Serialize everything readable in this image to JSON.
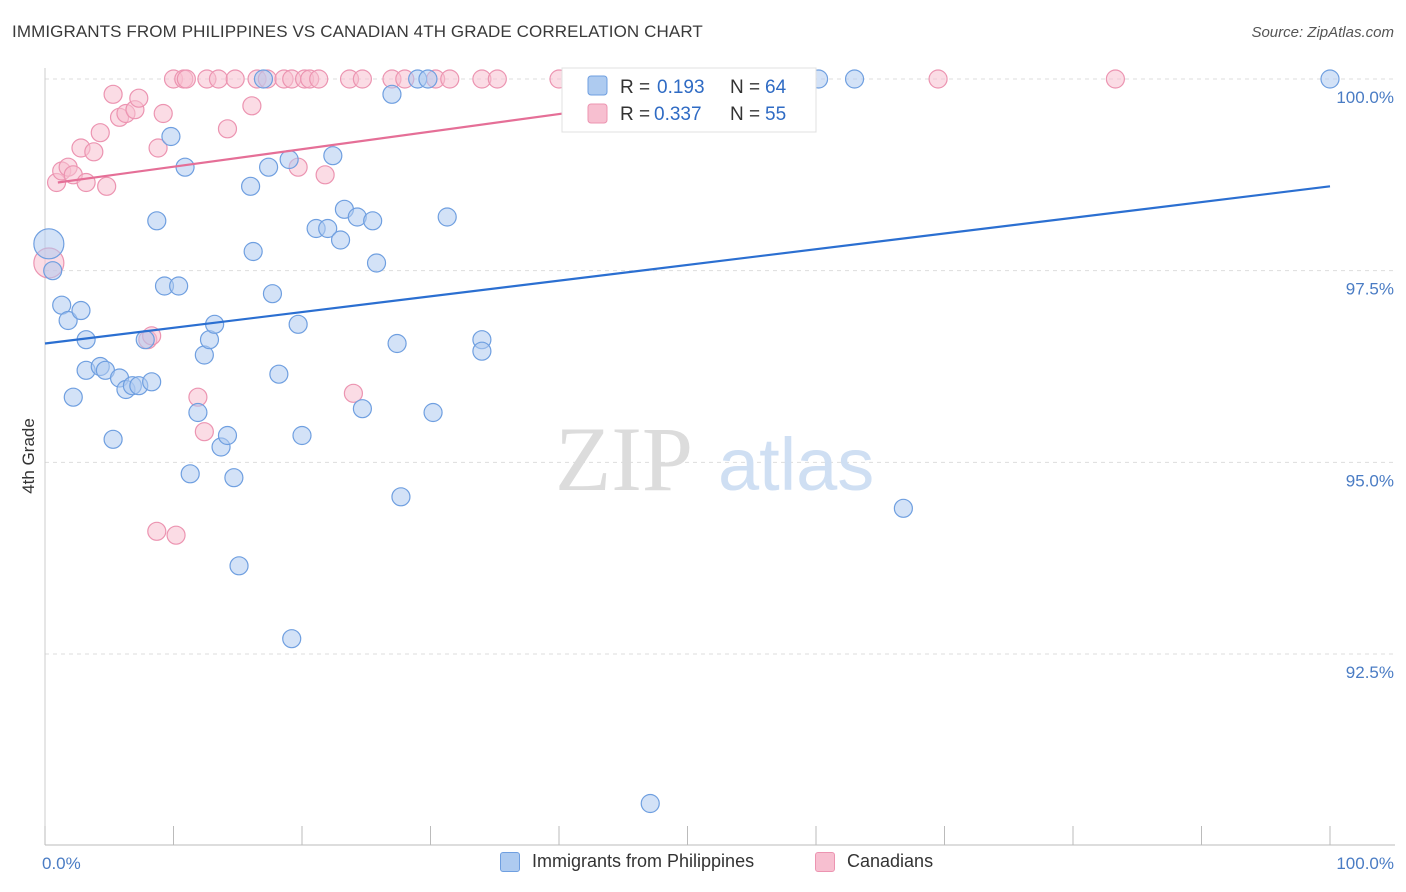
{
  "header": {
    "title": "IMMIGRANTS FROM PHILIPPINES VS CANADIAN 4TH GRADE CORRELATION CHART",
    "source": "Source: ZipAtlas.com"
  },
  "watermark": {
    "zip": "ZIP",
    "atlas": "atlas"
  },
  "colors": {
    "blue_fill": "#aecbf0",
    "blue_stroke": "#6f9fe0",
    "blue_line": "#2b6fd1",
    "pink_fill": "#f7bfd0",
    "pink_stroke": "#ec94b1",
    "pink_line": "#e56f97",
    "tick_label": "#4a7cc4",
    "grid": "#dddddd"
  },
  "legend": {
    "rows": [
      {
        "r_label": "R = ",
        "r_value": "0.193",
        "n_label": "N = ",
        "n_value": "64"
      },
      {
        "r_label": "R = ",
        "r_value": "0.337",
        "n_label": "N = ",
        "n_value": "55"
      }
    ]
  },
  "chart_data": {
    "type": "scatter",
    "title": "IMMIGRANTS FROM PHILIPPINES VS CANADIAN 4TH GRADE CORRELATION CHART",
    "xlabel": "",
    "ylabel": "4th Grade",
    "xlim": [
      0,
      100
    ],
    "ylim": [
      90.0,
      100.4
    ],
    "x_tick_labels": [
      "0.0%",
      "100.0%"
    ],
    "y_ticks": [
      {
        "value": 100.0,
        "label": "100.0%"
      },
      {
        "value": 97.5,
        "label": "97.5%"
      },
      {
        "value": 95.0,
        "label": "95.0%"
      },
      {
        "value": 92.5,
        "label": "92.5%"
      }
    ],
    "grid": true,
    "legend_position": "bottom",
    "series": [
      {
        "name": "Immigrants from Philippines",
        "color": "#6f9fe0",
        "r": 0.193,
        "n": 64,
        "trend": {
          "x": [
            0,
            100
          ],
          "y": [
            96.55,
            98.6
          ]
        },
        "points": [
          [
            0.3,
            97.85,
            14
          ],
          [
            0.6,
            97.5,
            10
          ],
          [
            1.3,
            97.05,
            8
          ],
          [
            1.8,
            96.85,
            8
          ],
          [
            2.2,
            95.85,
            8
          ],
          [
            2.8,
            96.98,
            8
          ],
          [
            3.2,
            96.6,
            8
          ],
          [
            3.2,
            96.2,
            8
          ],
          [
            4.3,
            96.25,
            8
          ],
          [
            4.7,
            96.2,
            8
          ],
          [
            5.3,
            95.3,
            8
          ],
          [
            5.8,
            96.1,
            8
          ],
          [
            6.3,
            95.95,
            8
          ],
          [
            6.8,
            96.0,
            8
          ],
          [
            7.3,
            96.0,
            8
          ],
          [
            7.8,
            96.6,
            8
          ],
          [
            8.3,
            96.05,
            8
          ],
          [
            8.7,
            98.15,
            8
          ],
          [
            9.3,
            97.3,
            8
          ],
          [
            9.8,
            99.25,
            8
          ],
          [
            10.4,
            97.3,
            8
          ],
          [
            10.9,
            98.85,
            8
          ],
          [
            11.3,
            94.85,
            8
          ],
          [
            11.9,
            95.65,
            8
          ],
          [
            12.4,
            96.4,
            8
          ],
          [
            12.8,
            96.6,
            8
          ],
          [
            13.2,
            96.8,
            8
          ],
          [
            13.7,
            95.2,
            8
          ],
          [
            14.2,
            95.35,
            8
          ],
          [
            14.7,
            94.8,
            8
          ],
          [
            15.1,
            93.65,
            8
          ],
          [
            16.0,
            98.6,
            8
          ],
          [
            16.2,
            97.75,
            8
          ],
          [
            17.0,
            100.0,
            8
          ],
          [
            17.4,
            98.85,
            8
          ],
          [
            17.7,
            97.2,
            8
          ],
          [
            18.2,
            96.15,
            8
          ],
          [
            19.0,
            98.95,
            8
          ],
          [
            19.2,
            92.7,
            8
          ],
          [
            19.7,
            96.8,
            8
          ],
          [
            20.0,
            95.35,
            8
          ],
          [
            21.1,
            98.05,
            8
          ],
          [
            22.0,
            98.05,
            8
          ],
          [
            22.4,
            99.0,
            8
          ],
          [
            23.0,
            97.9,
            8
          ],
          [
            23.3,
            98.3,
            8
          ],
          [
            24.3,
            98.2,
            8
          ],
          [
            24.7,
            95.7,
            8
          ],
          [
            25.5,
            98.15,
            8
          ],
          [
            25.8,
            97.6,
            8
          ],
          [
            27.0,
            99.8,
            8
          ],
          [
            27.4,
            96.55,
            8
          ],
          [
            27.7,
            94.55,
            8
          ],
          [
            29.0,
            100.0,
            8
          ],
          [
            29.8,
            100.0,
            8
          ],
          [
            30.2,
            95.65,
            8
          ],
          [
            31.3,
            98.2,
            8
          ],
          [
            34.0,
            96.6,
            8
          ],
          [
            34.0,
            96.45,
            8
          ],
          [
            47.1,
            90.55,
            8
          ],
          [
            60.2,
            100.0,
            8
          ],
          [
            63.0,
            100.0,
            8
          ],
          [
            66.8,
            94.4,
            8
          ],
          [
            100.0,
            100.0,
            8
          ]
        ]
      },
      {
        "name": "Canadians",
        "color": "#ec94b1",
        "r": 0.337,
        "n": 55,
        "trend": {
          "x": [
            1,
            60
          ],
          "y": [
            98.65,
            100.0
          ]
        },
        "points": [
          [
            0.3,
            97.6,
            14
          ],
          [
            0.9,
            98.65,
            8
          ],
          [
            1.3,
            98.8,
            8
          ],
          [
            1.8,
            98.85,
            8
          ],
          [
            2.2,
            98.75,
            8
          ],
          [
            2.8,
            99.1,
            8
          ],
          [
            3.2,
            98.65,
            8
          ],
          [
            3.8,
            99.05,
            8
          ],
          [
            4.3,
            99.3,
            8
          ],
          [
            4.8,
            98.6,
            8
          ],
          [
            5.3,
            99.8,
            8
          ],
          [
            5.8,
            99.5,
            8
          ],
          [
            6.3,
            99.55,
            8
          ],
          [
            7.0,
            99.6,
            8
          ],
          [
            7.3,
            99.75,
            8
          ],
          [
            8.0,
            96.6,
            8
          ],
          [
            8.3,
            96.65,
            8
          ],
          [
            8.7,
            94.1,
            8
          ],
          [
            8.8,
            99.1,
            8
          ],
          [
            9.2,
            99.55,
            8
          ],
          [
            10.0,
            100.0,
            8
          ],
          [
            10.2,
            94.05,
            8
          ],
          [
            10.8,
            100.0,
            8
          ],
          [
            11.0,
            100.0,
            8
          ],
          [
            11.9,
            95.85,
            8
          ],
          [
            12.6,
            100.0,
            8
          ],
          [
            12.4,
            95.4,
            8
          ],
          [
            13.5,
            100.0,
            8
          ],
          [
            14.2,
            99.35,
            8
          ],
          [
            14.8,
            100.0,
            8
          ],
          [
            16.1,
            99.65,
            8
          ],
          [
            16.5,
            100.0,
            8
          ],
          [
            17.3,
            100.0,
            8
          ],
          [
            18.6,
            100.0,
            8
          ],
          [
            19.2,
            100.0,
            8
          ],
          [
            19.7,
            98.85,
            8
          ],
          [
            20.2,
            100.0,
            8
          ],
          [
            20.6,
            100.0,
            8
          ],
          [
            21.3,
            100.0,
            8
          ],
          [
            21.8,
            98.75,
            8
          ],
          [
            23.7,
            100.0,
            8
          ],
          [
            24.0,
            95.9,
            8
          ],
          [
            24.7,
            100.0,
            8
          ],
          [
            27.0,
            100.0,
            8
          ],
          [
            28.0,
            100.0,
            8
          ],
          [
            30.4,
            100.0,
            8
          ],
          [
            31.5,
            100.0,
            8
          ],
          [
            34.0,
            100.0,
            8
          ],
          [
            35.2,
            100.0,
            8
          ],
          [
            40.0,
            100.0,
            8
          ],
          [
            47.0,
            100.0,
            8
          ],
          [
            55.0,
            100.0,
            8
          ],
          [
            58.0,
            100.0,
            8
          ],
          [
            69.5,
            100.0,
            8
          ],
          [
            83.3,
            100.0,
            8
          ]
        ]
      }
    ]
  }
}
